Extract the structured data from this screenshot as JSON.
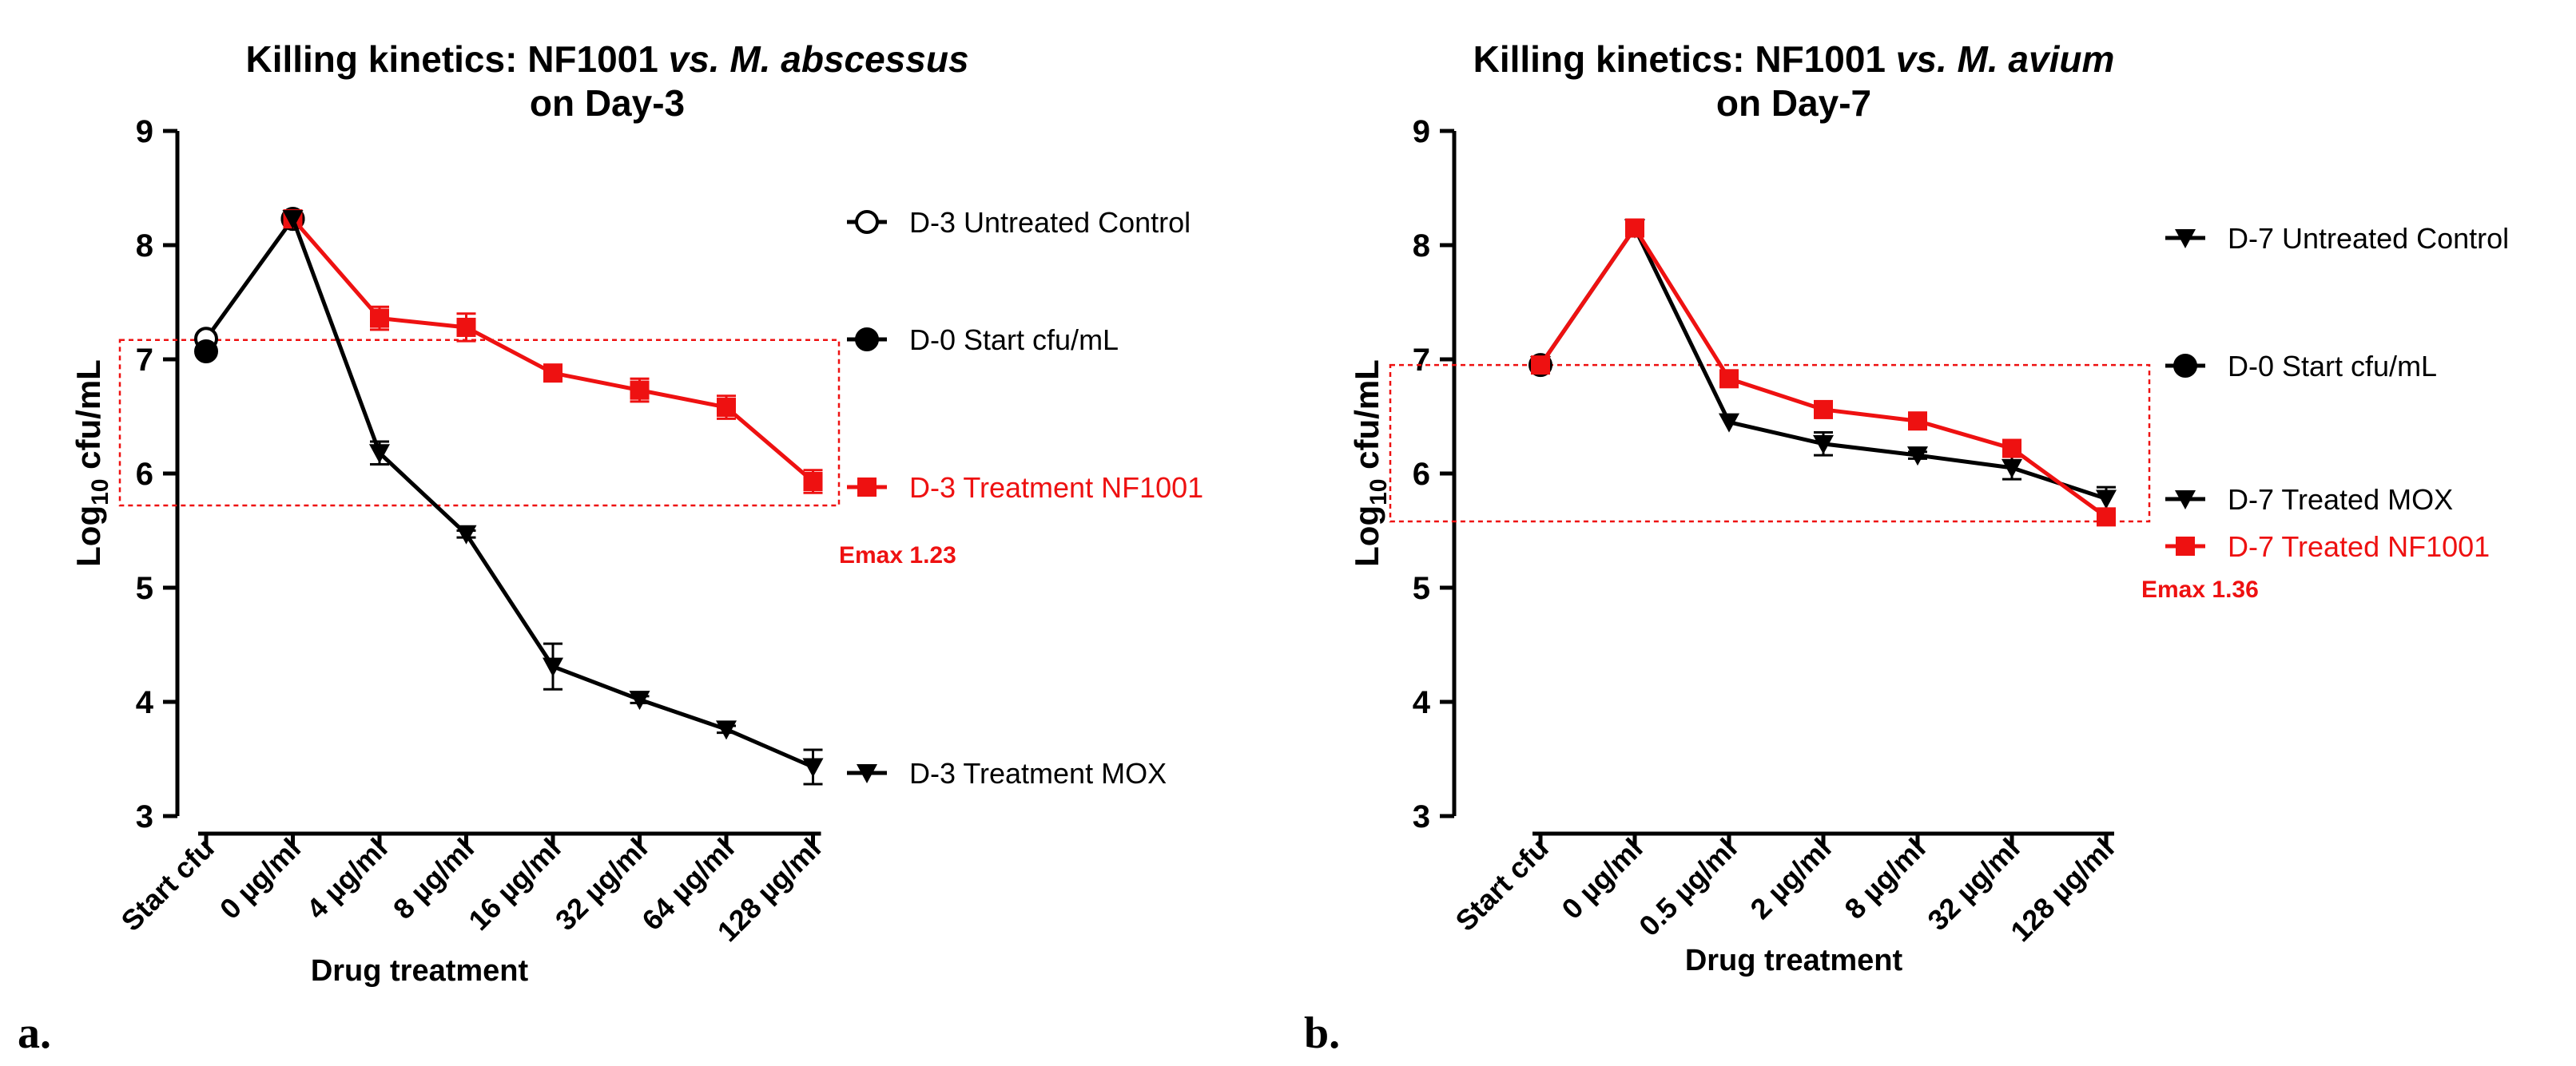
{
  "figure": {
    "panel_a_label": "a.",
    "panel_b_label": "b."
  },
  "chart_data": [
    {
      "type": "line",
      "title_prefix": "Killing kinetics: NF1001 ",
      "title_italic": "vs. M. abscessus",
      "title_line2": "on Day-3",
      "xlabel": "Drug treatment",
      "ylabel_main": "Log",
      "ylabel_sub": "10",
      "ylabel_tail": " cfu/mL",
      "ylim": [
        3,
        9
      ],
      "yticks": [
        "3",
        "4",
        "5",
        "6",
        "7",
        "8",
        "9"
      ],
      "categories": [
        "Start cfu",
        "0 µg/ml",
        "4 µg/ml",
        "8 µg/ml",
        "16 µg/ml",
        "32 µg/ml",
        "64 µg/ml",
        "128 µg/ml"
      ],
      "colors": {
        "black": "#000000",
        "red": "#ee1111",
        "box": "#ee1111"
      },
      "series": [
        {
          "name": "D-3 Untreated Control",
          "color": "#000000",
          "marker": "circle-open",
          "x": [
            0,
            1
          ],
          "values": [
            7.18,
            8.23
          ],
          "errors": [
            0,
            0
          ],
          "line": true
        },
        {
          "name": "D-0 Start cfu/mL",
          "color": "#000000",
          "marker": "circle",
          "x": [
            0,
            1
          ],
          "values": [
            7.07,
            8.23
          ],
          "errors": [
            0,
            0
          ],
          "line": false
        },
        {
          "name": "D-3 Treatment NF1001",
          "color": "#ee1111",
          "marker": "square",
          "x": [
            1,
            2,
            3,
            4,
            5,
            6,
            7
          ],
          "values": [
            8.23,
            7.36,
            7.28,
            6.88,
            6.73,
            6.58,
            5.93
          ],
          "errors": [
            0,
            0.1,
            0.12,
            0.05,
            0.1,
            0.1,
            0.1
          ],
          "line": true
        },
        {
          "name": "D-3 Treatment MOX",
          "color": "#000000",
          "marker": "triangle-down",
          "x": [
            1,
            2,
            3,
            4,
            5,
            6,
            7
          ],
          "values": [
            8.23,
            6.18,
            5.47,
            4.31,
            4.02,
            3.76,
            3.43
          ],
          "errors": [
            0,
            0.1,
            0.03,
            0.2,
            0.03,
            0.03,
            0.15
          ],
          "line": true
        }
      ],
      "annotation": "Emax 1.23",
      "highlight_box_y": [
        5.72,
        7.17
      ]
    },
    {
      "type": "line",
      "title_prefix": "Killing kinetics: NF1001 ",
      "title_italic": "vs. M. avium",
      "title_line2": "on Day-7",
      "xlabel": "Drug treatment",
      "ylabel_main": "Log",
      "ylabel_sub": "10",
      "ylabel_tail": " cfu/mL",
      "ylim": [
        3,
        9
      ],
      "yticks": [
        "3",
        "4",
        "5",
        "6",
        "7",
        "8",
        "9"
      ],
      "categories": [
        "Start cfu",
        "0 µg/ml",
        "0.5 µg/ml",
        "2 µg/ml",
        "8 µg/ml",
        "32 µg/ml",
        "128 µg/ml"
      ],
      "colors": {
        "black": "#000000",
        "red": "#ee1111",
        "box": "#ee1111"
      },
      "series": [
        {
          "name": "D-7 Untreated Control",
          "color": "#000000",
          "marker": "triangle-down",
          "x": [
            0,
            1
          ],
          "values": [
            6.95,
            8.15
          ],
          "errors": [
            0,
            0
          ],
          "line": true
        },
        {
          "name": "D-0 Start cfu/mL",
          "color": "#000000",
          "marker": "circle",
          "x": [
            0
          ],
          "values": [
            6.95
          ],
          "errors": [
            0
          ],
          "line": false
        },
        {
          "name": "D-7 Treated MOX",
          "color": "#000000",
          "marker": "triangle-down",
          "x": [
            1,
            2,
            3,
            4,
            5,
            6
          ],
          "values": [
            8.15,
            6.45,
            6.26,
            6.16,
            6.05,
            5.78
          ],
          "errors": [
            0,
            0,
            0.1,
            0.03,
            0.1,
            0.1
          ],
          "line": true
        },
        {
          "name": "D-7 Treated NF1001",
          "color": "#ee1111",
          "marker": "square",
          "x": [
            0,
            1,
            2,
            3,
            4,
            5,
            6
          ],
          "values": [
            6.95,
            8.15,
            6.83,
            6.56,
            6.46,
            6.22,
            5.62
          ],
          "errors": [
            0,
            0,
            0,
            0.05,
            0.05,
            0.05,
            0.03
          ],
          "line": true
        }
      ],
      "annotation": "Emax 1.36",
      "highlight_box_y": [
        5.58,
        6.95
      ]
    }
  ]
}
